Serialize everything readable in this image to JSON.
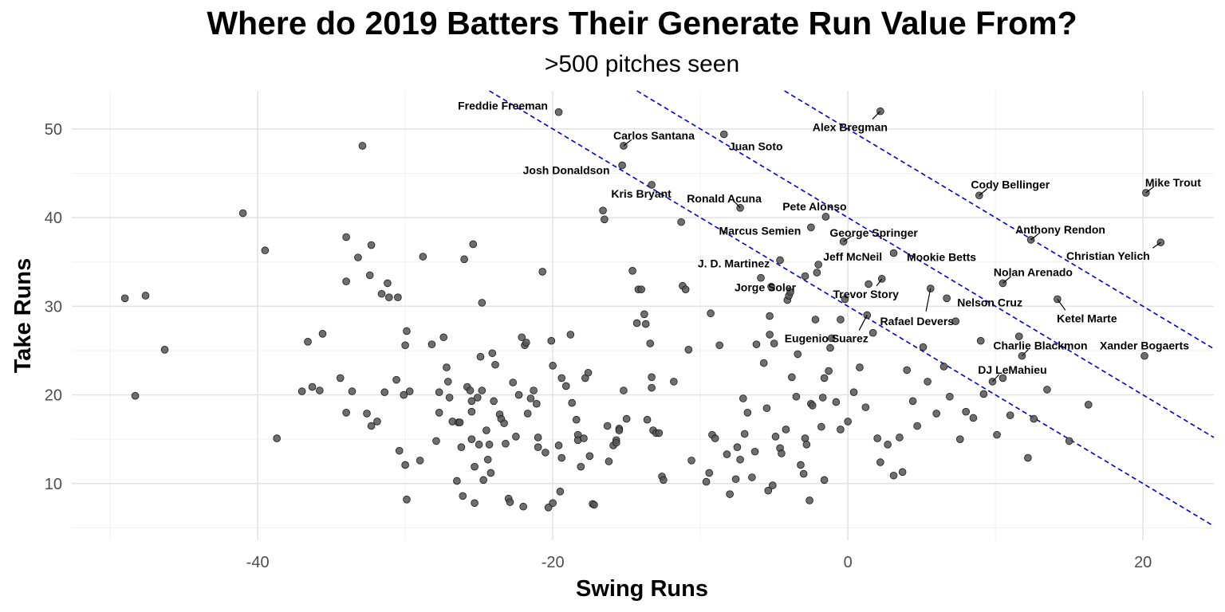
{
  "chart_data": {
    "type": "scatter",
    "title": "Where do 2019 Batters Their Generate Run Value From?",
    "subtitle": ">500 pitches seen",
    "xlabel": "Swing Runs",
    "ylabel": "Take Runs",
    "xlim": [
      -52.6,
      24.8
    ],
    "ylim": [
      3.6,
      54.3
    ],
    "x_ticks": [
      -40,
      -20,
      0,
      20
    ],
    "x_tick_labels": [
      "-40",
      "-20",
      "0",
      "20"
    ],
    "y_ticks": [
      10,
      20,
      30,
      40,
      50
    ],
    "y_tick_labels": [
      "10",
      "20",
      "30",
      "40",
      "50"
    ],
    "grid": true,
    "point_color": "#555555",
    "reference_line_color": "#0000cc",
    "reference_lines": [
      {
        "slope": -1,
        "intercept": 30
      },
      {
        "slope": -1,
        "intercept": 40
      },
      {
        "slope": -1,
        "intercept": 50
      }
    ],
    "labeled_points": [
      {
        "name": "Freddie Freeman",
        "x": -19.6,
        "y": 51.9
      },
      {
        "name": "Alex Bregman",
        "x": 2.2,
        "y": 52.0
      },
      {
        "name": "Carlos Santana",
        "x": -15.2,
        "y": 48.1
      },
      {
        "name": "Juan Soto",
        "x": -8.4,
        "y": 49.4
      },
      {
        "name": "Josh Donaldson",
        "x": -15.3,
        "y": 45.9
      },
      {
        "name": "Kris Bryant",
        "x": -13.3,
        "y": 43.7
      },
      {
        "name": "Ronald Acuna",
        "x": -7.3,
        "y": 41.1
      },
      {
        "name": "Pete Alonso",
        "x": -1.5,
        "y": 40.1
      },
      {
        "name": "Cody Bellinger",
        "x": 8.9,
        "y": 42.5
      },
      {
        "name": "Mike Trout",
        "x": 20.2,
        "y": 42.8
      },
      {
        "name": "Marcus Semien",
        "x": -2.5,
        "y": 38.9
      },
      {
        "name": "George Springer",
        "x": -0.3,
        "y": 37.3
      },
      {
        "name": "Anthony Rendon",
        "x": 12.4,
        "y": 37.5
      },
      {
        "name": "Christian Yelich",
        "x": 21.2,
        "y": 37.2
      },
      {
        "name": "Jeff McNeil",
        "x": -2.0,
        "y": 34.7
      },
      {
        "name": "Mookie Betts",
        "x": 3.1,
        "y": 36.0
      },
      {
        "name": "J. D. Martinez",
        "x": -4.6,
        "y": 35.2
      },
      {
        "name": "Jorge Soler",
        "x": -2.9,
        "y": 33.4
      },
      {
        "name": "Trevor Story",
        "x": 2.3,
        "y": 33.1
      },
      {
        "name": "Nolan Arenado",
        "x": 10.5,
        "y": 32.6
      },
      {
        "name": "Nelson Cruz",
        "x": 6.7,
        "y": 30.9
      },
      {
        "name": "Ketel Marte",
        "x": 14.2,
        "y": 30.8
      },
      {
        "name": "Rafael Devers",
        "x": 5.6,
        "y": 32.0
      },
      {
        "name": "Eugenio Suarez",
        "x": 1.3,
        "y": 29.0
      },
      {
        "name": "Charlie Blackmon",
        "x": 11.8,
        "y": 24.4
      },
      {
        "name": "Xander Bogaerts",
        "x": 20.1,
        "y": 24.4
      },
      {
        "name": "DJ LeMahieu",
        "x": 9.8,
        "y": 21.5
      }
    ],
    "other_points": [
      [
        -49.0,
        30.9
      ],
      [
        -47.6,
        31.2
      ],
      [
        -48.3,
        19.9
      ],
      [
        -46.3,
        25.1
      ],
      [
        -41.0,
        40.5
      ],
      [
        -39.5,
        36.3
      ],
      [
        -38.7,
        15.1
      ],
      [
        -37.0,
        20.4
      ],
      [
        -36.6,
        26.0
      ],
      [
        -36.3,
        20.9
      ],
      [
        -35.8,
        20.5
      ],
      [
        -35.6,
        26.9
      ],
      [
        -34.4,
        21.9
      ],
      [
        -34.0,
        37.8
      ],
      [
        -34.0,
        32.8
      ],
      [
        -34.0,
        18.0
      ],
      [
        -33.6,
        20.4
      ],
      [
        -33.2,
        35.5
      ],
      [
        -32.6,
        17.9
      ],
      [
        -32.4,
        33.5
      ],
      [
        -32.3,
        16.5
      ],
      [
        -32.3,
        36.9
      ],
      [
        -31.9,
        17.0
      ],
      [
        -31.6,
        31.4
      ],
      [
        -31.4,
        20.3
      ],
      [
        -31.2,
        32.6
      ],
      [
        -30.6,
        21.7
      ],
      [
        -30.4,
        13.7
      ],
      [
        -30.5,
        31.0
      ],
      [
        -30.1,
        20.0
      ],
      [
        -29.9,
        27.2
      ],
      [
        -30.0,
        25.6
      ],
      [
        -32.9,
        48.1
      ],
      [
        -31.1,
        31.0
      ],
      [
        -28.8,
        35.6
      ],
      [
        -30.0,
        12.1
      ],
      [
        -29.9,
        8.2
      ],
      [
        -29.7,
        20.4
      ],
      [
        -29.0,
        12.6
      ],
      [
        -28.2,
        25.7
      ],
      [
        -27.9,
        14.8
      ],
      [
        -27.7,
        20.3
      ],
      [
        -27.7,
        18.0
      ],
      [
        -27.4,
        26.5
      ],
      [
        -27.2,
        23.1
      ],
      [
        -27.1,
        21.5
      ],
      [
        -27.0,
        19.7
      ],
      [
        -26.8,
        17.0
      ],
      [
        -26.5,
        10.3
      ],
      [
        -26.4,
        16.9
      ],
      [
        -26.3,
        16.9
      ],
      [
        -26.2,
        14.1
      ],
      [
        -26.1,
        8.6
      ],
      [
        -26.0,
        35.3
      ],
      [
        -25.8,
        20.9
      ],
      [
        -25.6,
        20.5
      ],
      [
        -25.5,
        19.3
      ],
      [
        -25.5,
        18.1
      ],
      [
        -25.5,
        15.0
      ],
      [
        -25.4,
        37.0
      ],
      [
        -25.3,
        11.9
      ],
      [
        -25.3,
        7.8
      ],
      [
        -25.1,
        19.7
      ],
      [
        -25.0,
        14.4
      ],
      [
        -24.9,
        24.3
      ],
      [
        -24.8,
        30.4
      ],
      [
        -24.8,
        20.5
      ],
      [
        -24.7,
        10.4
      ],
      [
        -24.5,
        16.0
      ],
      [
        -24.4,
        12.7
      ],
      [
        -24.3,
        14.4
      ],
      [
        -24.2,
        11.2
      ],
      [
        -24.1,
        24.7
      ],
      [
        -24.0,
        19.3
      ],
      [
        -23.9,
        23.4
      ],
      [
        -23.6,
        17.8
      ],
      [
        -23.5,
        17.3
      ],
      [
        -23.3,
        16.8
      ],
      [
        -23.2,
        14.5
      ],
      [
        -23.0,
        8.3
      ],
      [
        -22.9,
        7.9
      ],
      [
        -22.7,
        21.4
      ],
      [
        -22.5,
        15.3
      ],
      [
        -22.3,
        20.0
      ],
      [
        -22.1,
        26.5
      ],
      [
        -22.0,
        7.4
      ],
      [
        -21.9,
        25.6
      ],
      [
        -21.8,
        25.9
      ],
      [
        -21.7,
        17.9
      ],
      [
        -21.5,
        19.6
      ],
      [
        -21.3,
        20.5
      ],
      [
        -21.1,
        19.0
      ],
      [
        -21.0,
        15.2
      ],
      [
        -21.0,
        14.1
      ],
      [
        -20.7,
        33.9
      ],
      [
        -20.5,
        13.5
      ],
      [
        -20.3,
        7.3
      ],
      [
        -20.1,
        26.1
      ],
      [
        -20.0,
        7.8
      ],
      [
        -20.0,
        23.3
      ],
      [
        -19.6,
        14.3
      ],
      [
        -19.5,
        9.1
      ],
      [
        -19.4,
        12.9
      ],
      [
        -19.4,
        21.9
      ],
      [
        -19.1,
        21.0
      ],
      [
        -18.8,
        26.8
      ],
      [
        -18.7,
        19.1
      ],
      [
        -18.4,
        17.2
      ],
      [
        -18.3,
        15.5
      ],
      [
        -18.3,
        14.9
      ],
      [
        -18.1,
        11.9
      ],
      [
        -17.9,
        15.1
      ],
      [
        -17.8,
        21.9
      ],
      [
        -17.6,
        22.5
      ],
      [
        -17.5,
        13.1
      ],
      [
        -17.3,
        7.7
      ],
      [
        -17.2,
        7.6
      ],
      [
        -16.6,
        40.8
      ],
      [
        -16.5,
        39.8
      ],
      [
        -16.3,
        16.5
      ],
      [
        -16.2,
        12.5
      ],
      [
        -15.9,
        14.3
      ],
      [
        -15.7,
        14.9
      ],
      [
        -15.7,
        14.6
      ],
      [
        -15.5,
        16.2
      ],
      [
        -15.5,
        16.0
      ],
      [
        -15.2,
        20.5
      ],
      [
        -15.0,
        17.3
      ],
      [
        -14.6,
        34.0
      ],
      [
        -14.3,
        28.1
      ],
      [
        -14.2,
        31.9
      ],
      [
        -14.0,
        31.9
      ],
      [
        -13.8,
        29.1
      ],
      [
        -13.7,
        28.0
      ],
      [
        -13.6,
        17.2
      ],
      [
        -13.4,
        25.8
      ],
      [
        -13.3,
        22.0
      ],
      [
        -13.3,
        20.8
      ],
      [
        -13.2,
        16.0
      ],
      [
        -13.0,
        15.7
      ],
      [
        -12.8,
        15.7
      ],
      [
        -12.6,
        10.8
      ],
      [
        -12.5,
        10.4
      ],
      [
        -11.8,
        21.5
      ],
      [
        -11.3,
        39.5
      ],
      [
        -11.2,
        32.3
      ],
      [
        -11.0,
        31.9
      ],
      [
        -10.8,
        25.1
      ],
      [
        -10.6,
        12.6
      ],
      [
        -9.6,
        10.2
      ],
      [
        -9.4,
        11.2
      ],
      [
        -9.3,
        29.2
      ],
      [
        -9.2,
        15.5
      ],
      [
        -9.0,
        15.1
      ],
      [
        -8.7,
        25.6
      ],
      [
        -8.2,
        13.3
      ],
      [
        -8.0,
        8.8
      ],
      [
        -7.6,
        10.5
      ],
      [
        -7.5,
        14.1
      ],
      [
        -7.3,
        12.7
      ],
      [
        -7.1,
        19.6
      ],
      [
        -7.0,
        15.6
      ],
      [
        -6.8,
        18.0
      ],
      [
        -6.5,
        10.7
      ],
      [
        -6.3,
        13.6
      ],
      [
        -6.2,
        25.7
      ],
      [
        -5.9,
        33.2
      ],
      [
        -5.7,
        23.6
      ],
      [
        -5.5,
        18.5
      ],
      [
        -5.4,
        9.2
      ],
      [
        -5.3,
        26.8
      ],
      [
        -5.3,
        28.9
      ],
      [
        -5.2,
        32.2
      ],
      [
        -5.1,
        9.8
      ],
      [
        -5.0,
        25.8
      ],
      [
        -4.9,
        15.3
      ],
      [
        -4.6,
        14.0
      ],
      [
        -4.5,
        13.4
      ],
      [
        -4.2,
        16.1
      ],
      [
        -4.1,
        30.7
      ],
      [
        -4.0,
        31.2
      ],
      [
        -3.9,
        31.6
      ],
      [
        -3.8,
        22.0
      ],
      [
        -3.5,
        19.8
      ],
      [
        -3.4,
        24.6
      ],
      [
        -3.2,
        12.1
      ],
      [
        -3.0,
        11.1
      ],
      [
        -2.9,
        15.1
      ],
      [
        -2.8,
        14.4
      ],
      [
        -2.6,
        8.1
      ],
      [
        -2.5,
        19.0
      ],
      [
        -2.4,
        18.8
      ],
      [
        -2.2,
        28.5
      ],
      [
        -2.1,
        33.8
      ],
      [
        -1.8,
        16.4
      ],
      [
        -1.7,
        19.7
      ],
      [
        -1.6,
        10.4
      ],
      [
        -1.6,
        21.9
      ],
      [
        -1.3,
        22.7
      ],
      [
        -1.2,
        25.3
      ],
      [
        -1.1,
        26.4
      ],
      [
        -0.8,
        19.2
      ],
      [
        -0.5,
        28.5
      ],
      [
        -0.5,
        16.1
      ],
      [
        -0.2,
        30.8
      ],
      [
        0.0,
        17.0
      ],
      [
        0.4,
        20.3
      ],
      [
        0.8,
        23.1
      ],
      [
        1.2,
        18.6
      ],
      [
        1.4,
        32.5
      ],
      [
        1.7,
        27.0
      ],
      [
        2.0,
        15.1
      ],
      [
        2.2,
        12.4
      ],
      [
        2.7,
        14.4
      ],
      [
        3.1,
        10.9
      ],
      [
        3.5,
        15.2
      ],
      [
        3.7,
        11.3
      ],
      [
        4.0,
        22.8
      ],
      [
        4.4,
        19.3
      ],
      [
        4.7,
        16.5
      ],
      [
        5.1,
        25.4
      ],
      [
        5.4,
        21.5
      ],
      [
        6.0,
        17.9
      ],
      [
        6.5,
        23.2
      ],
      [
        6.9,
        19.8
      ],
      [
        7.3,
        28.3
      ],
      [
        7.6,
        15.0
      ],
      [
        8.0,
        18.1
      ],
      [
        8.5,
        17.4
      ],
      [
        9.0,
        26.1
      ],
      [
        9.2,
        20.1
      ],
      [
        10.1,
        15.5
      ],
      [
        10.5,
        21.9
      ],
      [
        11.0,
        17.7
      ],
      [
        11.6,
        26.6
      ],
      [
        12.2,
        12.9
      ],
      [
        12.6,
        17.3
      ],
      [
        13.5,
        20.6
      ],
      [
        15.0,
        14.8
      ],
      [
        16.3,
        18.9
      ]
    ]
  }
}
